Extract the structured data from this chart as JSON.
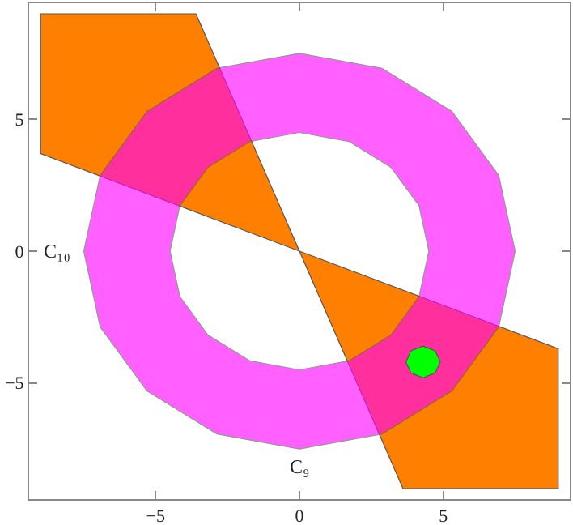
{
  "chart_data": {
    "type": "area",
    "xlabel": "C₉",
    "ylabel": "C₁₀",
    "xlim": [
      -9.4,
      9.4
    ],
    "ylim": [
      -9.4,
      9.4
    ],
    "xticks": [
      -5,
      0,
      5
    ],
    "yticks": [
      -5,
      0,
      5
    ],
    "grid": false,
    "series": [
      {
        "color": "#ff8000",
        "x": [
          0,
          -3.6,
          -9,
          -9,
          0,
          null,
          0,
          3.6,
          9,
          9,
          0
        ],
        "values": [
          0,
          9,
          9,
          3.7,
          0,
          null,
          0,
          -9,
          -9,
          -3.7,
          0
        ]
      },
      {
        "color": "#ff00ff",
        "x": [
          7.5,
          6.93,
          5.3,
          2.87,
          0,
          -2.87,
          -5.3,
          -6.93,
          -7.5,
          -6.93,
          -5.3,
          -2.87,
          0,
          2.87,
          5.3,
          6.93,
          7.5,
          null,
          4.5,
          4.16,
          3.18,
          1.72,
          0,
          -1.72,
          -3.18,
          -4.16,
          -4.5,
          -4.16,
          -3.18,
          -1.72,
          0,
          1.72,
          3.18,
          4.16,
          4.5
        ],
        "values": [
          0,
          2.87,
          5.3,
          6.93,
          7.5,
          6.93,
          5.3,
          2.87,
          0,
          -2.87,
          -5.3,
          -6.93,
          -7.5,
          -6.93,
          -5.3,
          -2.87,
          0,
          null,
          0,
          -1.72,
          -3.18,
          -4.16,
          -4.5,
          -4.16,
          -3.18,
          -1.72,
          0,
          1.72,
          3.18,
          4.16,
          4.5,
          4.16,
          3.18,
          1.72,
          0
        ]
      },
      {
        "color": "#00ff00",
        "x": [
          4.9,
          4.72,
          4.3,
          3.88,
          3.7,
          3.88,
          4.3,
          4.72,
          4.9
        ],
        "values": [
          -4.2,
          -3.78,
          -3.6,
          -3.78,
          -4.2,
          -4.62,
          -4.8,
          -4.62,
          -4.2
        ]
      }
    ]
  }
}
